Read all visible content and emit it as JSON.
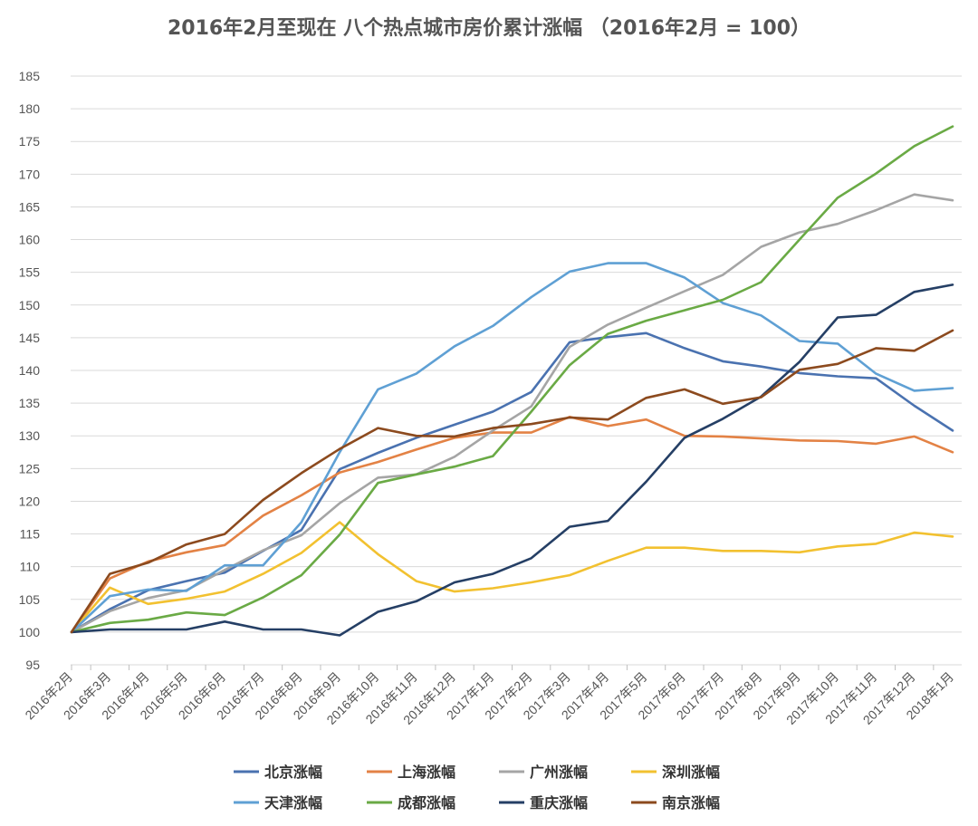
{
  "chart_data": {
    "type": "line",
    "title": "2016年2月至现在 八个热点城市房价累计涨幅 （2016年2月 = 100）",
    "xlabel": "",
    "ylabel": "",
    "ylim": [
      95,
      185
    ],
    "yticks": [
      95,
      100,
      105,
      110,
      115,
      120,
      125,
      130,
      135,
      140,
      145,
      150,
      155,
      160,
      165,
      170,
      175,
      180,
      185
    ],
    "grid": true,
    "legend_position": "bottom",
    "categories": [
      "2016年2月",
      "2016年3月",
      "2016年4月",
      "2016年5月",
      "2016年6月",
      "2016年7月",
      "2016年8月",
      "2016年9月",
      "2016年10月",
      "2016年11月",
      "2016年12月",
      "2017年1月",
      "2017年2月",
      "2017年3月",
      "2017年4月",
      "2017年5月",
      "2017年6月",
      "2017年7月",
      "2017年8月",
      "2017年9月",
      "2017年10月",
      "2017年11月",
      "2017年12月",
      "2018年1月"
    ],
    "series": [
      {
        "name": "北京涨幅",
        "color": "#4a72b0",
        "values": [
          100,
          103.5,
          106.4,
          107.8,
          109.1,
          112.4,
          115.6,
          124.9,
          127.4,
          129.7,
          131.7,
          133.7,
          136.7,
          144.3,
          145.1,
          145.7,
          143.4,
          141.4,
          140.6,
          139.6,
          139.1,
          138.8,
          134.6,
          130.8
        ]
      },
      {
        "name": "上海涨幅",
        "color": "#e38245",
        "values": [
          100,
          108.2,
          110.8,
          112.2,
          113.3,
          117.8,
          120.9,
          124.4,
          126.0,
          127.9,
          129.7,
          130.5,
          130.5,
          132.9,
          131.5,
          132.5,
          130.0,
          129.9,
          129.6,
          129.3,
          129.2,
          128.8,
          129.9,
          127.5
        ]
      },
      {
        "name": "广州涨幅",
        "color": "#a5a5a5",
        "values": [
          100,
          103.2,
          105.2,
          106.4,
          109.5,
          112.5,
          114.8,
          119.7,
          123.6,
          124.1,
          126.8,
          130.8,
          134.5,
          143.6,
          147.0,
          149.6,
          152.1,
          154.6,
          158.9,
          161.1,
          162.4,
          164.5,
          166.9,
          166.0
        ]
      },
      {
        "name": "深圳涨幅",
        "color": "#f2c130",
        "values": [
          100,
          106.8,
          104.3,
          105.1,
          106.2,
          108.9,
          112.1,
          116.8,
          111.9,
          107.8,
          106.2,
          106.7,
          107.6,
          108.7,
          110.9,
          112.9,
          112.9,
          112.4,
          112.4,
          112.2,
          113.1,
          113.5,
          115.2,
          114.6
        ]
      },
      {
        "name": "天津涨幅",
        "color": "#5fa0d4",
        "values": [
          100,
          105.5,
          106.5,
          106.3,
          110.2,
          110.2,
          116.8,
          127.5,
          137.1,
          139.5,
          143.7,
          146.8,
          151.2,
          155.1,
          156.4,
          156.4,
          154.2,
          150.3,
          148.4,
          144.5,
          144.1,
          139.5,
          136.9,
          137.3
        ]
      },
      {
        "name": "成都涨幅",
        "color": "#6aaa45",
        "values": [
          100,
          101.4,
          101.9,
          103.0,
          102.6,
          105.3,
          108.7,
          114.9,
          122.8,
          124.1,
          125.3,
          126.9,
          133.7,
          140.8,
          145.6,
          147.6,
          149.2,
          150.8,
          153.5,
          160.0,
          166.4,
          170.1,
          174.3,
          177.3
        ]
      },
      {
        "name": "重庆涨幅",
        "color": "#253f65",
        "values": [
          100,
          100.4,
          100.4,
          100.4,
          101.6,
          100.4,
          100.4,
          99.5,
          103.1,
          104.7,
          107.6,
          108.9,
          111.3,
          116.1,
          117.0,
          123.0,
          129.7,
          132.6,
          136.0,
          141.3,
          148.1,
          148.5,
          152.0,
          153.1
        ]
      },
      {
        "name": "南京涨幅",
        "color": "#8c4a1e",
        "values": [
          100,
          108.9,
          110.6,
          113.4,
          115.0,
          120.2,
          124.3,
          128.0,
          131.2,
          130.0,
          129.9,
          131.2,
          131.8,
          132.8,
          132.5,
          135.8,
          137.1,
          134.9,
          135.9,
          140.1,
          141.0,
          143.4,
          143.0,
          146.1
        ]
      }
    ]
  }
}
